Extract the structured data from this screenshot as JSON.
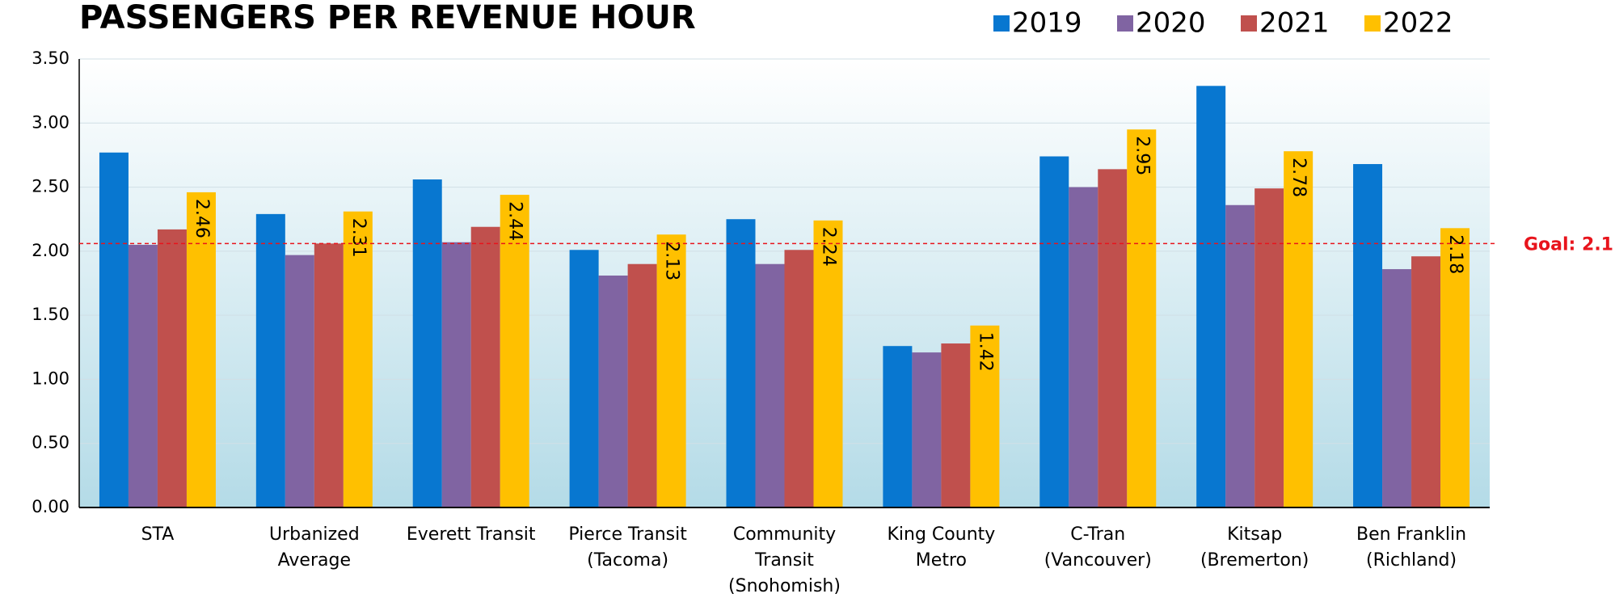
{
  "chart_data": {
    "type": "bar",
    "title": "PASSENGERS PER REVENUE HOUR",
    "categories": [
      "STA",
      "Urbanized\nAverage",
      "Everett Transit",
      "Pierce Transit\n(Tacoma)",
      "Community\nTransit\n(Snohomish)",
      "King County\nMetro",
      "C-Tran\n(Vancouver)",
      "Kitsap\n(Bremerton)",
      "Ben Franklin\n(Richland)"
    ],
    "series": [
      {
        "name": "2019",
        "color": "#0877d0",
        "values": [
          2.77,
          2.29,
          2.56,
          2.01,
          2.25,
          1.26,
          2.74,
          3.29,
          2.68
        ]
      },
      {
        "name": "2020",
        "color": "#8064a2",
        "values": [
          2.05,
          1.97,
          2.07,
          1.81,
          1.9,
          1.21,
          2.5,
          2.36,
          1.86
        ]
      },
      {
        "name": "2021",
        "color": "#c0504d",
        "values": [
          2.17,
          2.06,
          2.19,
          1.9,
          2.01,
          1.28,
          2.64,
          2.49,
          1.96
        ]
      },
      {
        "name": "2022",
        "color": "#ffc000",
        "values": [
          2.46,
          2.31,
          2.44,
          2.13,
          2.24,
          1.42,
          2.95,
          2.78,
          2.18
        ],
        "data_labels": true
      }
    ],
    "ylim": [
      0,
      3.5
    ],
    "yticks": [
      {
        "value": 0,
        "label": "0.00"
      },
      {
        "value": 0.5,
        "label": "0.50"
      },
      {
        "value": 1,
        "label": "1.00"
      },
      {
        "value": 1.5,
        "label": "1.50"
      },
      {
        "value": 2,
        "label": "2.00"
      },
      {
        "value": 2.5,
        "label": "2.50"
      },
      {
        "value": 3,
        "label": "3.00"
      },
      {
        "value": 3.5,
        "label": "3.50"
      }
    ],
    "grid": true,
    "legend": "top-right",
    "goal": {
      "value": 2.06,
      "label": "Goal: 2.1",
      "color": "#e8141c"
    }
  }
}
